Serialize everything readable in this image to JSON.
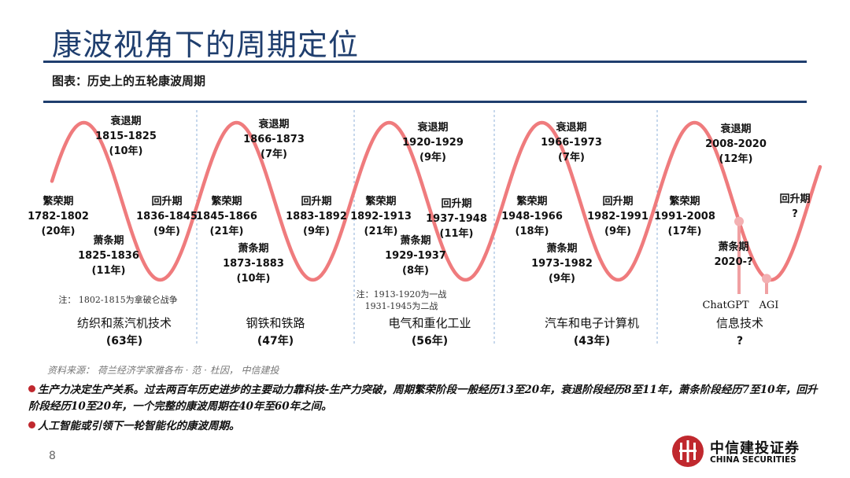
{
  "title": "康波视角下的周期定位",
  "subtitle": "图表：历史上的五轮康波周期",
  "cycles": [
    {
      "prosperity": {
        "label": "繁荣期",
        "years": "1782-1802",
        "dur": "(20年)"
      },
      "recession": {
        "label": "衰退期",
        "years": "1815-1825",
        "dur": "(10年)"
      },
      "depression": {
        "label": "萧条期",
        "years": "1825-1836",
        "dur": "(11年)"
      },
      "recovery": {
        "label": "回升期",
        "years": "1836-1845",
        "dur": "(9年)"
      },
      "note": [
        "注：  1802-1815为拿破仑战争"
      ],
      "tech": "纺织和蒸汽机技术",
      "total": "(63年)"
    },
    {
      "prosperity": {
        "label": "繁荣期",
        "years": "1845-1866",
        "dur": "(21年)"
      },
      "recession": {
        "label": "衰退期",
        "years": "1866-1873",
        "dur": "(7年)"
      },
      "depression": {
        "label": "萧条期",
        "years": "1873-1883",
        "dur": "(10年)"
      },
      "recovery": {
        "label": "回升期",
        "years": "1883-1892",
        "dur": "(9年)"
      },
      "note": [],
      "tech": "钢铁和铁路",
      "total": "(47年)"
    },
    {
      "prosperity": {
        "label": "繁荣期",
        "years": "1892-1913",
        "dur": "(21年)"
      },
      "recession": {
        "label": "衰退期",
        "years": "1920-1929",
        "dur": "(9年)"
      },
      "depression": {
        "label": "萧条期",
        "years": "1929-1937",
        "dur": "(8年)"
      },
      "recovery": {
        "label": "回升期",
        "years": "1937-1948",
        "dur": "(11年)"
      },
      "note": [
        "注：1913-1920为一战",
        "1931-1945为二战"
      ],
      "tech": "电气和重化工业",
      "total": "(56年)"
    },
    {
      "prosperity": {
        "label": "繁荣期",
        "years": "1948-1966",
        "dur": "(18年)"
      },
      "recession": {
        "label": "衰退期",
        "years": "1966-1973",
        "dur": "(7年)"
      },
      "depression": {
        "label": "萧条期",
        "years": "1973-1982",
        "dur": "(9年)"
      },
      "recovery": {
        "label": "回升期",
        "years": "1982-1991",
        "dur": "(9年)"
      },
      "note": [],
      "tech": "汽车和电子计算机",
      "total": "(43年)"
    },
    {
      "prosperity": {
        "label": "繁荣期",
        "years": "1991-2008",
        "dur": "(17年)"
      },
      "recession": {
        "label": "衰退期",
        "years": "2008-2020",
        "dur": "(12年)"
      },
      "depression": {
        "label": "萧条期",
        "years": "2020-?",
        "dur": ""
      },
      "recovery": {
        "label": "回升期",
        "years": "?",
        "dur": ""
      },
      "note": [],
      "tech": "信息技术",
      "total": "?"
    }
  ],
  "markers": [
    "ChatGPT",
    "AGI"
  ],
  "source": "资料来源：  荷兰经济学家雅各布 · 范 · 杜因，  中信建投",
  "bullets": [
    "生产力决定生产关系。过去两百年历史进步的主要动力靠科技-生产力突破，周期繁荣阶段一般经历13至20年，衰退阶段经历8至11年，萧条阶段经历7至10年，回升阶段经历10至20年，一个完整的康波周期在40年至60年之间。",
    "人工智能或引领下一轮智能化的康波周期。"
  ],
  "page_number": "8",
  "logo": {
    "name": "中信建投证券",
    "en": "CHINA SECURITIES"
  },
  "colors": {
    "wave": "#ef7b7d",
    "title": "#1f3e6e",
    "bullet": "#c0282e",
    "separator": "#8fb0d8"
  }
}
